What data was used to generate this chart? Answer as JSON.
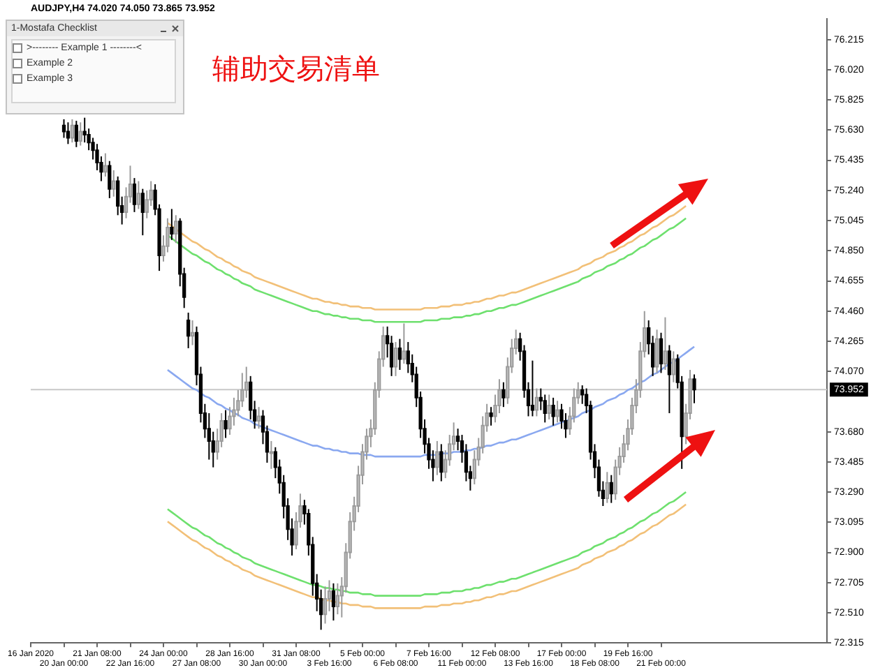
{
  "chart_data": {
    "type": "candlestick",
    "title": "AUDJPY,H4 74.020 74.050 73.865 73.952",
    "categories": [
      "16 Jan 2020",
      null,
      null,
      null,
      null,
      null,
      null,
      null,
      "20 Jan 00:00",
      null,
      null,
      null,
      null,
      null,
      null,
      null,
      "21 Jan 08:00",
      null,
      null,
      null,
      null,
      null,
      null,
      null,
      "22 Jan 16:00",
      null,
      null,
      null,
      null,
      null,
      null,
      null,
      "24 Jan 00:00",
      null,
      null,
      null,
      null,
      null,
      null,
      null,
      "27 Jan 08:00",
      null,
      null,
      null,
      null,
      null,
      null,
      null,
      "28 Jan 16:00",
      null,
      null,
      null,
      null,
      null,
      null,
      null,
      "30 Jan 00:00",
      null,
      null,
      null,
      null,
      null,
      null,
      null,
      "31 Jan 08:00",
      null,
      null,
      null,
      null,
      null,
      null,
      null,
      "3 Feb 16:00",
      null,
      null,
      null,
      null,
      null,
      null,
      null,
      "5 Feb 00:00",
      null,
      null,
      null,
      null,
      null,
      null,
      null,
      "6 Feb 08:00",
      null,
      null,
      null,
      null,
      null,
      null,
      null,
      "7 Feb 16:00",
      null,
      null,
      null,
      null,
      null,
      null,
      null,
      "11 Feb 00:00",
      null,
      null,
      null,
      null,
      null,
      null,
      null,
      "12 Feb 08:00",
      null,
      null,
      null,
      null,
      null,
      null,
      null,
      "13 Feb 16:00",
      null,
      null,
      null,
      null,
      null,
      null,
      null,
      "17 Feb 00:00",
      null,
      null,
      null,
      null,
      null,
      null,
      null,
      "18 Feb 08:00",
      null,
      null,
      null,
      null,
      null,
      null,
      null,
      "19 Feb 16:00",
      null,
      null,
      null,
      null,
      null,
      null,
      null,
      "21 Feb 00:00",
      null,
      null,
      null,
      null,
      null,
      null,
      null,
      null,
      null,
      null,
      null,
      null,
      null,
      null,
      null,
      null,
      null,
      null,
      null,
      null,
      null,
      null,
      null,
      null,
      null,
      null,
      null,
      null,
      null,
      null,
      null,
      null,
      null,
      null,
      null,
      null,
      null,
      null,
      null,
      null
    ],
    "ohlc": [
      null,
      null,
      null,
      null,
      null,
      null,
      null,
      null,
      [
        75.66,
        75.7,
        75.58,
        75.62
      ],
      [
        75.62,
        75.68,
        75.54,
        75.58
      ],
      [
        75.58,
        75.7,
        75.55,
        75.66
      ],
      [
        75.66,
        75.69,
        75.52,
        75.56
      ],
      [
        75.56,
        75.68,
        75.53,
        75.62
      ],
      [
        75.62,
        75.71,
        75.55,
        75.6
      ],
      [
        75.6,
        75.64,
        75.5,
        75.55
      ],
      [
        75.55,
        75.58,
        75.44,
        75.5
      ],
      [
        75.5,
        75.54,
        75.37,
        75.42
      ],
      [
        75.42,
        75.46,
        75.3,
        75.36
      ],
      [
        75.36,
        75.48,
        75.33,
        75.4
      ],
      [
        75.4,
        75.43,
        75.19,
        75.25
      ],
      [
        75.25,
        75.37,
        75.2,
        75.3
      ],
      [
        75.3,
        75.33,
        75.08,
        75.14
      ],
      [
        75.14,
        75.2,
        75.02,
        75.1
      ],
      [
        75.1,
        75.26,
        75.06,
        75.2
      ],
      [
        75.2,
        75.4,
        75.16,
        75.28
      ],
      [
        75.28,
        75.32,
        75.1,
        75.15
      ],
      [
        75.15,
        75.3,
        75.12,
        75.22
      ],
      [
        75.22,
        75.25,
        74.95,
        75.1
      ],
      [
        75.1,
        75.24,
        75.06,
        75.18
      ],
      [
        75.18,
        75.3,
        75.14,
        75.24
      ],
      [
        75.24,
        75.28,
        75.08,
        75.12
      ],
      [
        75.12,
        75.15,
        74.72,
        74.82
      ],
      [
        74.82,
        74.95,
        74.78,
        74.88
      ],
      [
        74.88,
        75.06,
        74.84,
        75.0
      ],
      [
        75.0,
        75.12,
        74.92,
        74.96
      ],
      [
        74.96,
        75.08,
        74.9,
        75.04
      ],
      [
        75.04,
        75.06,
        74.62,
        74.7
      ],
      [
        74.7,
        74.74,
        74.48,
        74.55
      ],
      [
        74.4,
        74.45,
        74.22,
        74.3
      ],
      [
        74.3,
        74.4,
        74.24,
        74.32
      ],
      [
        74.32,
        74.36,
        73.98,
        74.05
      ],
      [
        74.05,
        74.1,
        73.74,
        73.8
      ],
      [
        73.8,
        73.86,
        73.64,
        73.7
      ],
      [
        73.7,
        73.8,
        73.5,
        73.62
      ],
      [
        73.62,
        73.68,
        73.45,
        73.55
      ],
      [
        73.55,
        73.7,
        73.5,
        73.62
      ],
      [
        73.62,
        73.8,
        73.58,
        73.75
      ],
      [
        73.75,
        73.82,
        73.64,
        73.7
      ],
      [
        73.7,
        73.84,
        73.66,
        73.78
      ],
      [
        73.78,
        73.9,
        73.72,
        73.82
      ],
      [
        73.82,
        73.95,
        73.78,
        73.88
      ],
      [
        73.88,
        74.06,
        73.84,
        73.95
      ],
      [
        73.95,
        74.1,
        73.9,
        74.0
      ],
      [
        74.0,
        74.04,
        73.76,
        73.82
      ],
      [
        73.82,
        73.88,
        73.7,
        73.75
      ],
      [
        73.75,
        73.84,
        73.7,
        73.78
      ],
      [
        73.78,
        73.82,
        73.6,
        73.68
      ],
      [
        73.68,
        73.72,
        73.48,
        73.55
      ],
      [
        73.55,
        73.62,
        73.44,
        73.55
      ],
      [
        73.55,
        73.58,
        73.38,
        73.45
      ],
      [
        73.45,
        73.5,
        73.28,
        73.35
      ],
      [
        73.35,
        73.4,
        73.12,
        73.2
      ],
      [
        73.2,
        73.25,
        72.98,
        73.05
      ],
      [
        73.05,
        73.12,
        72.88,
        72.95
      ],
      [
        72.95,
        73.16,
        72.92,
        73.1
      ],
      [
        73.1,
        73.28,
        73.06,
        73.2
      ],
      [
        73.2,
        73.24,
        73.08,
        73.15
      ],
      [
        73.15,
        73.18,
        72.88,
        72.95
      ],
      [
        72.95,
        73.0,
        72.62,
        72.7
      ],
      [
        72.7,
        72.76,
        72.52,
        72.6
      ],
      [
        72.6,
        72.66,
        72.4,
        72.5
      ],
      [
        72.5,
        72.68,
        72.44,
        72.6
      ],
      [
        72.6,
        72.72,
        72.52,
        72.65
      ],
      [
        72.65,
        72.7,
        72.46,
        72.55
      ],
      [
        72.55,
        72.7,
        72.5,
        72.62
      ],
      [
        72.62,
        72.74,
        72.48,
        72.68
      ],
      [
        72.68,
        72.96,
        72.64,
        72.9
      ],
      [
        72.9,
        73.16,
        72.86,
        73.1
      ],
      [
        73.1,
        73.26,
        73.04,
        73.2
      ],
      [
        73.2,
        73.46,
        73.16,
        73.4
      ],
      [
        73.4,
        73.6,
        73.34,
        73.55
      ],
      [
        73.55,
        73.7,
        73.5,
        73.65
      ],
      [
        73.65,
        73.76,
        73.58,
        73.7
      ],
      [
        73.7,
        74.0,
        73.66,
        73.95
      ],
      [
        73.95,
        74.2,
        73.9,
        74.15
      ],
      [
        74.15,
        74.36,
        74.1,
        74.3
      ],
      [
        74.3,
        74.36,
        74.16,
        74.25
      ],
      [
        74.25,
        74.3,
        74.04,
        74.1
      ],
      [
        74.1,
        74.26,
        74.04,
        74.22
      ],
      [
        74.22,
        74.28,
        74.08,
        74.15
      ],
      [
        74.15,
        74.38,
        74.12,
        74.2
      ],
      [
        74.2,
        74.26,
        74.06,
        74.12
      ],
      [
        74.12,
        74.18,
        74.0,
        74.05
      ],
      [
        74.05,
        74.1,
        73.84,
        73.9
      ],
      [
        73.9,
        73.94,
        73.64,
        73.7
      ],
      [
        73.7,
        73.76,
        73.54,
        73.6
      ],
      [
        73.6,
        73.64,
        73.44,
        73.5
      ],
      [
        73.5,
        73.56,
        73.36,
        73.45
      ],
      [
        73.45,
        73.62,
        73.4,
        73.55
      ],
      [
        73.55,
        73.6,
        73.36,
        73.42
      ],
      [
        73.42,
        73.56,
        73.38,
        73.5
      ],
      [
        73.5,
        73.66,
        73.46,
        73.6
      ],
      [
        73.6,
        73.74,
        73.56,
        73.65
      ],
      [
        73.65,
        73.7,
        73.56,
        73.62
      ],
      [
        73.62,
        73.66,
        73.48,
        73.55
      ],
      [
        73.55,
        73.6,
        73.36,
        73.42
      ],
      [
        73.42,
        73.46,
        73.3,
        73.38
      ],
      [
        73.38,
        73.56,
        73.34,
        73.5
      ],
      [
        73.5,
        73.64,
        73.46,
        73.58
      ],
      [
        73.58,
        73.78,
        73.54,
        73.72
      ],
      [
        73.72,
        73.86,
        73.68,
        73.8
      ],
      [
        73.8,
        73.84,
        73.72,
        73.78
      ],
      [
        73.78,
        73.92,
        73.74,
        73.85
      ],
      [
        73.85,
        74.02,
        73.8,
        73.95
      ],
      [
        73.95,
        74.0,
        73.84,
        73.9
      ],
      [
        73.9,
        74.16,
        73.86,
        74.1
      ],
      [
        74.1,
        74.28,
        74.06,
        74.22
      ],
      [
        74.22,
        74.34,
        74.18,
        74.28
      ],
      [
        74.28,
        74.32,
        74.14,
        74.2
      ],
      [
        74.2,
        74.24,
        73.9,
        73.95
      ],
      [
        73.95,
        74.0,
        73.78,
        73.85
      ],
      [
        73.85,
        74.14,
        73.78,
        73.82
      ],
      [
        73.82,
        73.96,
        73.78,
        73.9
      ],
      [
        73.9,
        73.96,
        73.82,
        73.88
      ],
      [
        73.88,
        73.92,
        73.74,
        73.8
      ],
      [
        73.8,
        73.92,
        73.76,
        73.85
      ],
      [
        73.85,
        73.9,
        73.72,
        73.78
      ],
      [
        73.78,
        73.88,
        73.74,
        73.82
      ],
      [
        73.82,
        73.86,
        73.7,
        73.75
      ],
      [
        73.75,
        73.8,
        73.64,
        73.7
      ],
      [
        73.7,
        73.84,
        73.66,
        73.78
      ],
      [
        73.78,
        73.96,
        73.74,
        73.9
      ],
      [
        73.9,
        74.0,
        73.86,
        73.95
      ],
      [
        73.95,
        73.98,
        73.86,
        73.92
      ],
      [
        73.92,
        73.96,
        73.8,
        73.85
      ],
      [
        73.85,
        73.88,
        73.5,
        73.55
      ],
      [
        73.55,
        73.6,
        73.38,
        73.45
      ],
      [
        73.45,
        73.5,
        73.26,
        73.3
      ],
      [
        73.3,
        73.36,
        73.2,
        73.25
      ],
      [
        73.25,
        73.42,
        73.22,
        73.35
      ],
      [
        73.35,
        73.4,
        73.22,
        73.28
      ],
      [
        73.28,
        73.5,
        73.24,
        73.45
      ],
      [
        73.45,
        73.58,
        73.4,
        73.52
      ],
      [
        73.52,
        73.66,
        73.48,
        73.6
      ],
      [
        73.6,
        73.76,
        73.56,
        73.7
      ],
      [
        73.7,
        73.9,
        73.66,
        73.85
      ],
      [
        73.85,
        74.02,
        73.8,
        73.95
      ],
      [
        73.95,
        74.26,
        73.9,
        74.2
      ],
      [
        74.2,
        74.46,
        74.16,
        74.35
      ],
      [
        74.35,
        74.4,
        74.18,
        74.25
      ],
      [
        74.25,
        74.3,
        74.04,
        74.1
      ],
      [
        74.1,
        74.34,
        74.06,
        74.28
      ],
      [
        74.28,
        74.32,
        74.06,
        74.12
      ],
      [
        74.12,
        74.42,
        74.08,
        74.2
      ],
      [
        74.2,
        74.24,
        73.8,
        74.05
      ],
      [
        74.05,
        74.2,
        74.0,
        74.15
      ],
      [
        74.15,
        74.18,
        73.96,
        74.0
      ],
      [
        74.0,
        74.04,
        73.44,
        73.65
      ],
      [
        73.65,
        73.86,
        73.6,
        73.8
      ],
      [
        73.8,
        74.08,
        73.76,
        74.02
      ],
      [
        74.02,
        74.05,
        73.865,
        73.952
      ],
      null,
      null,
      null,
      null,
      null,
      null,
      null,
      null,
      null,
      null,
      null,
      null,
      null,
      null,
      null,
      null,
      null,
      null,
      null,
      null,
      null,
      null,
      null,
      null,
      null,
      null,
      null,
      null,
      null,
      null,
      null,
      null
    ],
    "series": [
      {
        "type": "line",
        "color": "#f2c078",
        "values": [
          null,
          null,
          null,
          null,
          null,
          null,
          null,
          null,
          null,
          null,
          null,
          null,
          null,
          null,
          null,
          null,
          null,
          null,
          null,
          null,
          null,
          null,
          null,
          null,
          null,
          null,
          null,
          null,
          null,
          null,
          null,
          null,
          null,
          75.03,
          75.01,
          74.99,
          74.97,
          74.95,
          74.93,
          74.91,
          74.9,
          74.88,
          74.86,
          74.85,
          74.83,
          74.81,
          74.8,
          74.78,
          74.77,
          74.75,
          74.74,
          74.72,
          74.71,
          74.7,
          74.68,
          74.67,
          74.66,
          74.65,
          74.64,
          74.63,
          74.62,
          74.61,
          74.6,
          74.59,
          74.58,
          74.57,
          74.56,
          74.55,
          74.54,
          74.54,
          74.53,
          74.52,
          74.52,
          74.51,
          74.51,
          74.5,
          74.5,
          74.49,
          74.49,
          74.49,
          74.48,
          74.48,
          74.48,
          74.47,
          74.47,
          74.47,
          74.47,
          74.47,
          74.47,
          74.47,
          74.47,
          74.47,
          74.47,
          74.47,
          74.47,
          74.48,
          74.48,
          74.48,
          74.48,
          74.49,
          74.49,
          74.49,
          74.5,
          74.5,
          74.5,
          74.51,
          74.51,
          74.52,
          74.52,
          74.53,
          74.54,
          74.54,
          74.55,
          74.56,
          74.56,
          74.57,
          74.58,
          74.58,
          74.59,
          74.6,
          74.61,
          74.62,
          74.63,
          74.64,
          74.65,
          74.66,
          74.67,
          74.68,
          74.69,
          74.7,
          74.71,
          74.72,
          74.73,
          74.75,
          74.76,
          74.77,
          74.79,
          74.8,
          74.81,
          74.83,
          74.84,
          74.85,
          74.87,
          74.88,
          74.9,
          74.91,
          74.93,
          74.95,
          74.96,
          74.98,
          75.0,
          75.01,
          75.03,
          75.05,
          75.07,
          75.08,
          75.1,
          75.12,
          75.14,
          null,
          null,
          null,
          null,
          null,
          null,
          null,
          null,
          null,
          null,
          null,
          null,
          null,
          null,
          null,
          null,
          null,
          null,
          null,
          null,
          null,
          null,
          null,
          null,
          null,
          null,
          null,
          null,
          null,
          null,
          null,
          null,
          null,
          null
        ]
      },
      {
        "type": "line",
        "color": "#6ee06e",
        "values": [
          null,
          null,
          null,
          null,
          null,
          null,
          null,
          null,
          null,
          null,
          null,
          null,
          null,
          null,
          null,
          null,
          null,
          null,
          null,
          null,
          null,
          null,
          null,
          null,
          null,
          null,
          null,
          null,
          null,
          null,
          null,
          null,
          null,
          74.95,
          74.93,
          74.91,
          74.89,
          74.87,
          74.85,
          74.83,
          74.82,
          74.8,
          74.78,
          74.77,
          74.75,
          74.73,
          74.72,
          74.7,
          74.69,
          74.67,
          74.66,
          74.64,
          74.63,
          74.62,
          74.6,
          74.59,
          74.58,
          74.57,
          74.56,
          74.55,
          74.54,
          74.53,
          74.52,
          74.51,
          74.5,
          74.49,
          74.48,
          74.47,
          74.46,
          74.46,
          74.45,
          74.44,
          74.44,
          74.43,
          74.43,
          74.42,
          74.42,
          74.41,
          74.41,
          74.41,
          74.4,
          74.4,
          74.4,
          74.39,
          74.39,
          74.39,
          74.39,
          74.39,
          74.39,
          74.39,
          74.39,
          74.39,
          74.39,
          74.39,
          74.39,
          74.4,
          74.4,
          74.4,
          74.4,
          74.41,
          74.41,
          74.41,
          74.42,
          74.42,
          74.42,
          74.43,
          74.43,
          74.44,
          74.44,
          74.45,
          74.46,
          74.46,
          74.47,
          74.48,
          74.48,
          74.49,
          74.5,
          74.5,
          74.51,
          74.52,
          74.53,
          74.54,
          74.55,
          74.56,
          74.57,
          74.58,
          74.59,
          74.6,
          74.61,
          74.62,
          74.63,
          74.64,
          74.65,
          74.67,
          74.68,
          74.69,
          74.71,
          74.72,
          74.73,
          74.75,
          74.76,
          74.77,
          74.79,
          74.8,
          74.82,
          74.83,
          74.85,
          74.87,
          74.88,
          74.9,
          74.92,
          74.93,
          74.95,
          74.97,
          74.99,
          75.0,
          75.02,
          75.04,
          75.06,
          null,
          null,
          null,
          null,
          null,
          null,
          null,
          null,
          null,
          null,
          null,
          null,
          null,
          null,
          null,
          null,
          null,
          null,
          null,
          null,
          null,
          null,
          null,
          null,
          null,
          null,
          null,
          null,
          null,
          null,
          null,
          null,
          null,
          null
        ]
      },
      {
        "type": "line",
        "color": "#8aa8f0",
        "values": [
          null,
          null,
          null,
          null,
          null,
          null,
          null,
          null,
          null,
          null,
          null,
          null,
          null,
          null,
          null,
          null,
          null,
          null,
          null,
          null,
          null,
          null,
          null,
          null,
          null,
          null,
          null,
          null,
          null,
          null,
          null,
          null,
          null,
          74.08,
          74.06,
          74.04,
          74.02,
          74.0,
          73.98,
          73.96,
          73.95,
          73.93,
          73.91,
          73.9,
          73.88,
          73.86,
          73.85,
          73.83,
          73.82,
          73.8,
          73.79,
          73.77,
          73.76,
          73.75,
          73.73,
          73.72,
          73.71,
          73.7,
          73.69,
          73.68,
          73.67,
          73.66,
          73.65,
          73.64,
          73.63,
          73.62,
          73.61,
          73.6,
          73.59,
          73.59,
          73.58,
          73.57,
          73.57,
          73.56,
          73.56,
          73.55,
          73.55,
          73.54,
          73.54,
          73.54,
          73.53,
          73.53,
          73.53,
          73.52,
          73.52,
          73.52,
          73.52,
          73.52,
          73.52,
          73.52,
          73.52,
          73.52,
          73.52,
          73.52,
          73.52,
          73.53,
          73.53,
          73.53,
          73.53,
          73.54,
          73.54,
          73.54,
          73.55,
          73.55,
          73.55,
          73.56,
          73.56,
          73.57,
          73.57,
          73.58,
          73.59,
          73.59,
          73.6,
          73.61,
          73.61,
          73.62,
          73.63,
          73.63,
          73.64,
          73.65,
          73.66,
          73.67,
          73.68,
          73.69,
          73.7,
          73.71,
          73.72,
          73.73,
          73.74,
          73.75,
          73.76,
          73.77,
          73.78,
          73.8,
          73.81,
          73.82,
          73.84,
          73.85,
          73.86,
          73.88,
          73.89,
          73.9,
          73.92,
          73.93,
          73.95,
          73.96,
          73.98,
          74.0,
          74.01,
          74.03,
          74.05,
          74.06,
          74.08,
          74.1,
          74.12,
          74.13,
          74.15,
          74.17,
          74.19,
          74.21,
          74.23,
          null,
          null,
          null,
          null,
          null,
          null,
          null,
          null,
          null,
          null,
          null,
          null,
          null,
          null,
          null,
          null,
          null,
          null,
          null,
          null,
          null,
          null,
          null,
          null,
          null,
          null,
          null,
          null,
          null,
          null,
          null,
          null
        ]
      },
      {
        "type": "line",
        "color": "#6ee06e",
        "values": [
          null,
          null,
          null,
          null,
          null,
          null,
          null,
          null,
          null,
          null,
          null,
          null,
          null,
          null,
          null,
          null,
          null,
          null,
          null,
          null,
          null,
          null,
          null,
          null,
          null,
          null,
          null,
          null,
          null,
          null,
          null,
          null,
          null,
          73.18,
          73.16,
          73.14,
          73.12,
          73.1,
          73.08,
          73.06,
          73.05,
          73.03,
          73.01,
          73.0,
          72.98,
          72.96,
          72.95,
          72.93,
          72.92,
          72.9,
          72.89,
          72.87,
          72.86,
          72.85,
          72.83,
          72.82,
          72.81,
          72.8,
          72.79,
          72.78,
          72.77,
          72.76,
          72.75,
          72.74,
          72.73,
          72.72,
          72.71,
          72.7,
          72.69,
          72.69,
          72.68,
          72.67,
          72.67,
          72.66,
          72.66,
          72.65,
          72.65,
          72.64,
          72.64,
          72.64,
          72.63,
          72.63,
          72.63,
          72.62,
          72.62,
          72.62,
          72.62,
          72.62,
          72.62,
          72.62,
          72.62,
          72.62,
          72.62,
          72.62,
          72.62,
          72.63,
          72.63,
          72.63,
          72.63,
          72.64,
          72.64,
          72.64,
          72.65,
          72.65,
          72.65,
          72.66,
          72.66,
          72.67,
          72.67,
          72.68,
          72.69,
          72.69,
          72.7,
          72.71,
          72.71,
          72.72,
          72.73,
          72.73,
          72.74,
          72.75,
          72.76,
          72.77,
          72.78,
          72.79,
          72.8,
          72.81,
          72.82,
          72.83,
          72.84,
          72.85,
          72.86,
          72.87,
          72.88,
          72.9,
          72.91,
          72.92,
          72.94,
          72.95,
          72.96,
          72.98,
          72.99,
          73.0,
          73.02,
          73.03,
          73.05,
          73.06,
          73.08,
          73.1,
          73.11,
          73.13,
          73.15,
          73.16,
          73.18,
          73.2,
          73.22,
          73.23,
          73.25,
          73.27,
          73.29,
          null,
          null,
          null,
          null,
          null,
          null,
          null,
          null,
          null,
          null,
          null,
          null,
          null,
          null,
          null,
          null,
          null,
          null,
          null,
          null,
          null,
          null,
          null,
          null,
          null,
          null,
          null,
          null,
          null,
          null,
          null,
          null,
          null,
          null
        ]
      },
      {
        "type": "line",
        "color": "#f2c078",
        "values": [
          null,
          null,
          null,
          null,
          null,
          null,
          null,
          null,
          null,
          null,
          null,
          null,
          null,
          null,
          null,
          null,
          null,
          null,
          null,
          null,
          null,
          null,
          null,
          null,
          null,
          null,
          null,
          null,
          null,
          null,
          null,
          null,
          null,
          73.1,
          73.08,
          73.06,
          73.04,
          73.02,
          73.0,
          72.98,
          72.97,
          72.95,
          72.93,
          72.92,
          72.9,
          72.88,
          72.87,
          72.85,
          72.84,
          72.82,
          72.81,
          72.79,
          72.78,
          72.77,
          72.75,
          72.74,
          72.73,
          72.72,
          72.71,
          72.7,
          72.69,
          72.68,
          72.67,
          72.66,
          72.65,
          72.64,
          72.63,
          72.62,
          72.61,
          72.61,
          72.6,
          72.59,
          72.59,
          72.58,
          72.58,
          72.57,
          72.57,
          72.56,
          72.56,
          72.56,
          72.55,
          72.55,
          72.55,
          72.54,
          72.54,
          72.54,
          72.54,
          72.54,
          72.54,
          72.54,
          72.54,
          72.54,
          72.54,
          72.54,
          72.54,
          72.55,
          72.55,
          72.55,
          72.55,
          72.56,
          72.56,
          72.56,
          72.57,
          72.57,
          72.57,
          72.58,
          72.58,
          72.59,
          72.59,
          72.6,
          72.61,
          72.61,
          72.62,
          72.63,
          72.63,
          72.64,
          72.65,
          72.65,
          72.66,
          72.67,
          72.68,
          72.69,
          72.7,
          72.71,
          72.72,
          72.73,
          72.74,
          72.75,
          72.76,
          72.77,
          72.78,
          72.79,
          72.8,
          72.82,
          72.83,
          72.84,
          72.86,
          72.87,
          72.88,
          72.9,
          72.91,
          72.92,
          72.94,
          72.95,
          72.97,
          72.98,
          73.0,
          73.02,
          73.03,
          73.05,
          73.07,
          73.08,
          73.1,
          73.12,
          73.14,
          73.15,
          73.17,
          73.19,
          73.21,
          null,
          null,
          null,
          null,
          null,
          null,
          null,
          null,
          null,
          null,
          null,
          null,
          null,
          null,
          null,
          null,
          null,
          null,
          null,
          null,
          null,
          null,
          null,
          null,
          null,
          null,
          null,
          null,
          null,
          null,
          null,
          null,
          null,
          null
        ]
      }
    ],
    "ylim": [
      72.315,
      76.35
    ],
    "yticks": [
      72.315,
      {
        "value": 72.51,
        "label": "72.510"
      },
      72.705,
      {
        "value": 72.9,
        "label": "72.900"
      },
      73.095,
      {
        "value": 73.29,
        "label": "73.290"
      },
      73.485,
      {
        "value": 73.68,
        "label": "73.680"
      },
      {
        "value": 74.07,
        "label": "74.070"
      },
      74.265,
      {
        "value": 74.46,
        "label": "74.460"
      },
      74.655,
      {
        "value": 74.85,
        "label": "74.850"
      },
      75.045,
      {
        "value": 75.24,
        "label": "75.240"
      },
      75.435,
      {
        "value": 75.63,
        "label": "75.630"
      },
      75.825,
      {
        "value": 76.02,
        "label": "76.020"
      },
      76.215
    ],
    "ref_lines": [
      {
        "axis": "y",
        "value": 73.952,
        "label": "73.952",
        "color": "#c8c8c8"
      }
    ],
    "annotations": [
      "1-Mostafa Checklist",
      ">-------- Example 1 --------<",
      "Example 2",
      "Example 3",
      "辅助交易清单"
    ],
    "grid": false,
    "legend": false
  }
}
